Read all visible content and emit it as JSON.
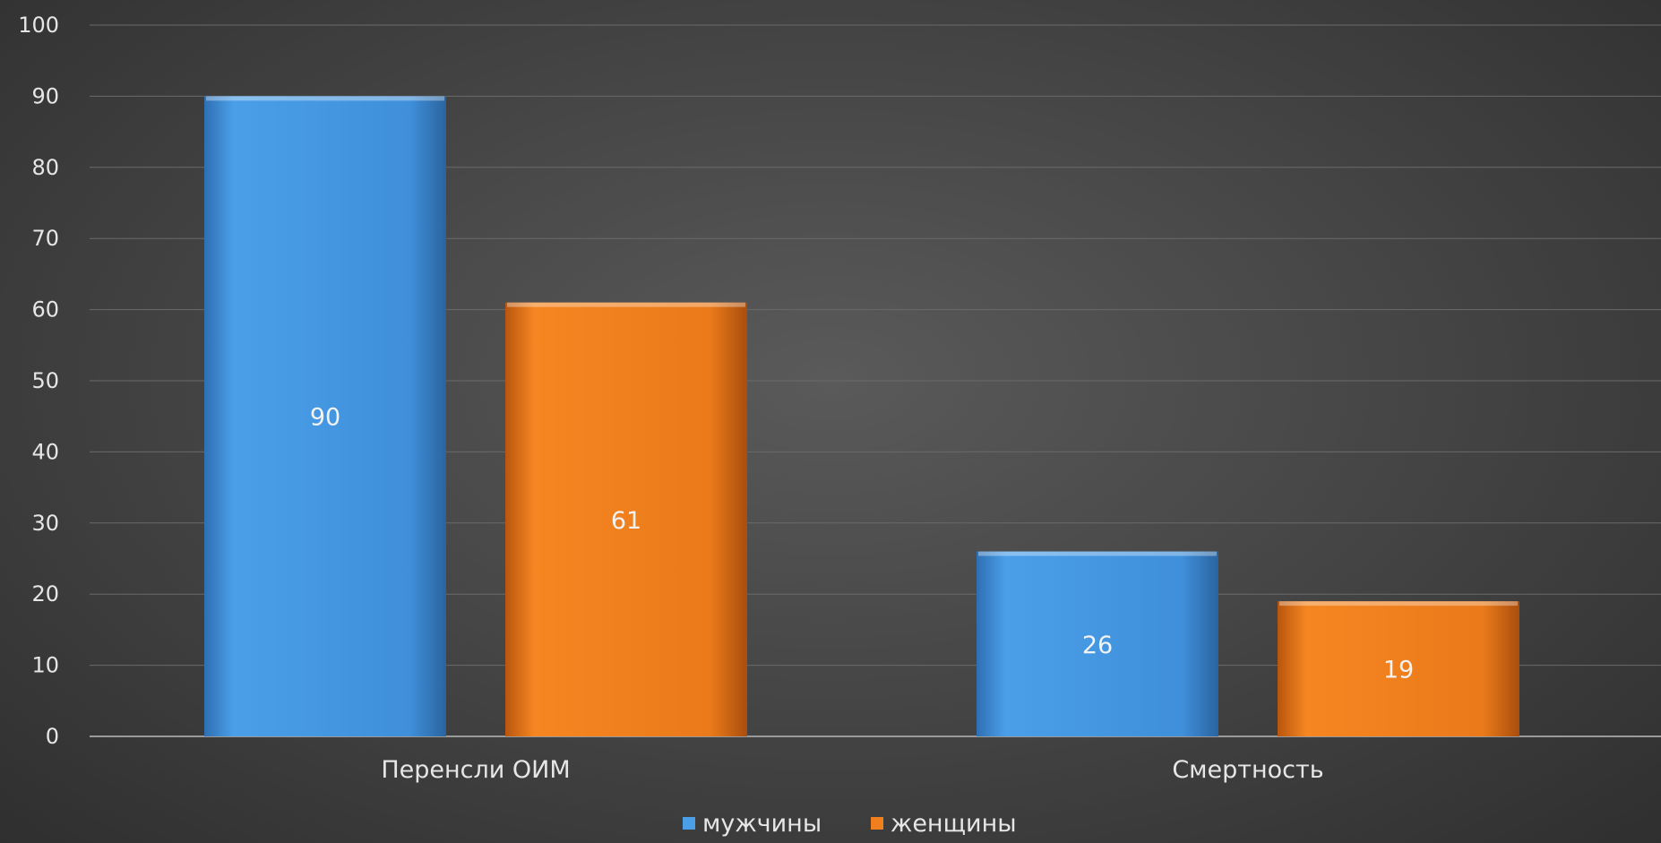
{
  "chart_data": {
    "type": "bar",
    "categories": [
      "Перенсли ОИМ",
      "Смертность"
    ],
    "series": [
      {
        "name": "мужчины",
        "values": [
          90,
          26
        ],
        "color": "#4a9fe8"
      },
      {
        "name": "женщины",
        "values": [
          61,
          19
        ],
        "color": "#f07f1d"
      }
    ],
    "ylim": [
      0,
      100
    ],
    "yticks": [
      0,
      10,
      20,
      30,
      40,
      50,
      60,
      70,
      80,
      90,
      100
    ],
    "grid": true,
    "legend": "bottom-center",
    "data_labels": true
  }
}
